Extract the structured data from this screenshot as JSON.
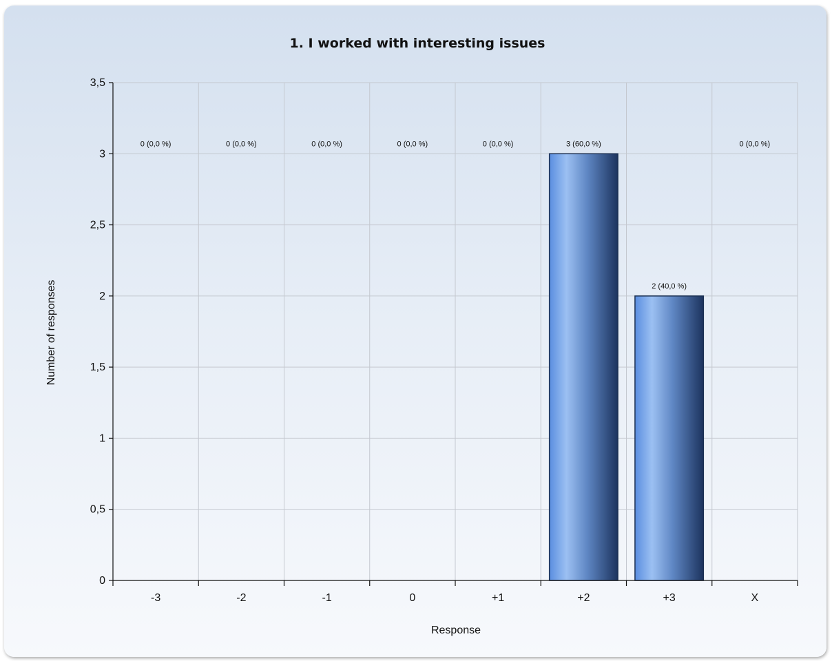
{
  "chart_data": {
    "type": "bar",
    "title": "1. I worked with interesting issues",
    "xlabel": "Response",
    "ylabel": "Number of responses",
    "categories": [
      "-3",
      "-2",
      "-1",
      "0",
      "+1",
      "+2",
      "+3",
      "X"
    ],
    "values": [
      0,
      0,
      0,
      0,
      0,
      3,
      2,
      0
    ],
    "data_labels": [
      "0 (0,0 %)",
      "0 (0,0 %)",
      "0 (0,0 %)",
      "0 (0,0 %)",
      "0 (0,0 %)",
      "3 (60,0 %)",
      "2 (40,0 %)",
      "0 (0,0 %)"
    ],
    "ylim": [
      0,
      3.5
    ],
    "yticks": [
      0,
      0.5,
      1,
      1.5,
      2,
      2.5,
      3,
      3.5
    ],
    "ytick_labels": [
      "0",
      "0,5",
      "1",
      "1,5",
      "2",
      "2,5",
      "3",
      "3,5"
    ],
    "grid": true,
    "legend": "none",
    "colors": {
      "bar_light": "#9cc0f2",
      "bar_mid": "#5a8ee0",
      "bar_dark": "#1c335e",
      "bar_edge": "#1a2f52"
    }
  }
}
